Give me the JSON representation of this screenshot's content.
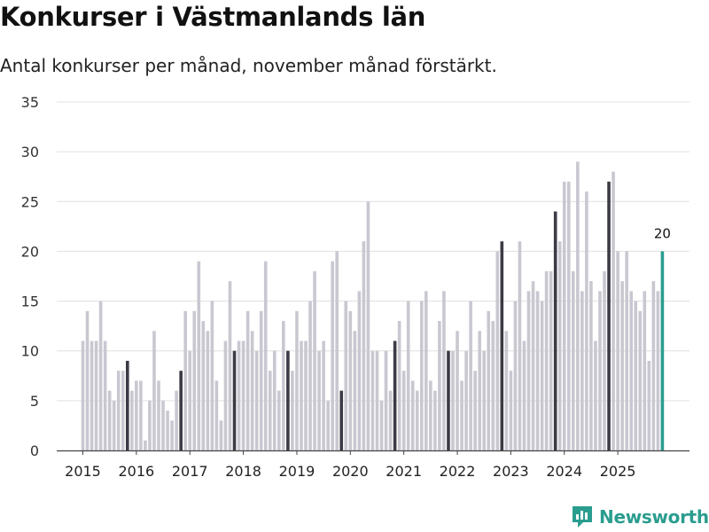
{
  "header": {
    "title": "Konkurser i Västmanlands län",
    "subtitle": "Antal konkurser per månad, november månad förstärkt."
  },
  "branding": {
    "name": "Newsworthy"
  },
  "colors": {
    "regular": "#c9c8d1",
    "november": "#3c3b45",
    "latest": "#2a9d8f",
    "grid": "#e0e0e0",
    "axis": "#444444",
    "brand": "#2a9d8f"
  },
  "chart_data": {
    "type": "bar",
    "title": "Konkurser i Västmanlands län",
    "subtitle": "Antal konkurser per månad, november månad förstärkt.",
    "xlabel": "",
    "ylabel": "",
    "ylim": [
      0,
      35
    ],
    "yticks": [
      "0",
      "5",
      "10",
      "15",
      "20",
      "25",
      "30",
      "35"
    ],
    "xticks": [
      "2015",
      "2016",
      "2017",
      "2018",
      "2019",
      "2020",
      "2021",
      "2022",
      "2023",
      "2024",
      "2025"
    ],
    "grid": true,
    "start": "2015-01",
    "highlight_month": "november",
    "latest_label": "20",
    "values": [
      11,
      14,
      11,
      11,
      15,
      11,
      6,
      5,
      8,
      8,
      9,
      6,
      7,
      7,
      1,
      5,
      12,
      7,
      5,
      4,
      3,
      6,
      8,
      14,
      10,
      14,
      19,
      13,
      12,
      15,
      7,
      3,
      11,
      17,
      10,
      11,
      11,
      14,
      12,
      10,
      14,
      19,
      8,
      10,
      6,
      13,
      10,
      8,
      14,
      11,
      11,
      15,
      18,
      10,
      11,
      5,
      19,
      20,
      6,
      15,
      14,
      12,
      16,
      21,
      25,
      10,
      10,
      5,
      10,
      6,
      11,
      13,
      8,
      15,
      7,
      6,
      15,
      16,
      7,
      6,
      13,
      16,
      10,
      10,
      12,
      7,
      10,
      15,
      8,
      12,
      10,
      14,
      13,
      20,
      21,
      12,
      8,
      15,
      21,
      11,
      16,
      17,
      16,
      15,
      18,
      18,
      24,
      21,
      27,
      27,
      18,
      29,
      16,
      26,
      17,
      11,
      16,
      18,
      27,
      28,
      20,
      17,
      20,
      16,
      15,
      14,
      16,
      9,
      17,
      16,
      20
    ]
  }
}
